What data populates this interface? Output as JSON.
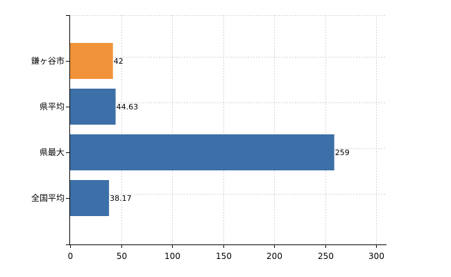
{
  "chart_data": {
    "type": "bar",
    "orientation": "horizontal",
    "categories": [
      "鎌ヶ谷市",
      "県平均",
      "県最大",
      "全国平均"
    ],
    "values": [
      42,
      44.63,
      259,
      38.17
    ],
    "value_labels": [
      "42",
      "44.63",
      "259",
      "38.17"
    ],
    "bar_colors": [
      "#f0933a",
      "#3d6fa8",
      "#3d6fa8",
      "#3d6fa8"
    ],
    "xlim": [
      0,
      300
    ],
    "x_ticks": [
      0,
      50,
      100,
      150,
      200,
      250,
      300
    ],
    "grid": true,
    "title": "",
    "xlabel": "",
    "ylabel": ""
  }
}
